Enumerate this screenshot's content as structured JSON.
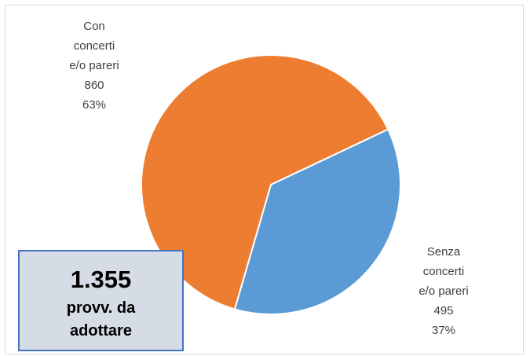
{
  "chart_data": {
    "type": "pie",
    "categories": [
      "Con concerti e/o pareri",
      "Senza concerti e/o pareri"
    ],
    "values": [
      860,
      495
    ],
    "percentages": [
      63,
      37
    ],
    "percentage_labels": [
      "63%",
      "37%"
    ],
    "colors": [
      "#ED7D31",
      "#5B9BD5"
    ],
    "annotation": {
      "value_label": "1.355",
      "text": "provv. da adottare"
    }
  }
}
